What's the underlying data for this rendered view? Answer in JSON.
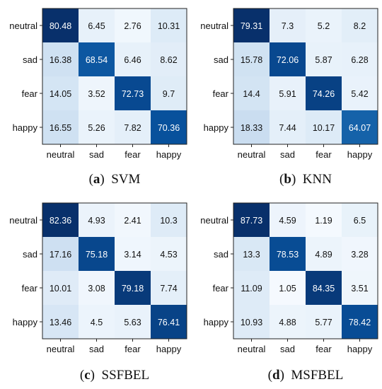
{
  "chart_data": [
    {
      "type": "heatmap",
      "caption_label": "a",
      "caption_text": "SVM",
      "rows": [
        "neutral",
        "sad",
        "fear",
        "happy"
      ],
      "cols": [
        "neutral",
        "sad",
        "fear",
        "happy"
      ],
      "values": [
        [
          80.48,
          6.45,
          2.76,
          10.31
        ],
        [
          16.38,
          68.54,
          6.46,
          8.62
        ],
        [
          14.05,
          3.52,
          72.73,
          9.7
        ],
        [
          16.55,
          5.26,
          7.82,
          70.36
        ]
      ],
      "colormap": "Blues"
    },
    {
      "type": "heatmap",
      "caption_label": "b",
      "caption_text": "KNN",
      "rows": [
        "neutral",
        "sad",
        "fear",
        "happy"
      ],
      "cols": [
        "neutral",
        "sad",
        "fear",
        "happy"
      ],
      "values": [
        [
          79.31,
          7.3,
          5.2,
          8.2
        ],
        [
          15.78,
          72.06,
          5.87,
          6.28
        ],
        [
          14.4,
          5.91,
          74.26,
          5.42
        ],
        [
          18.33,
          7.44,
          10.17,
          64.07
        ]
      ],
      "colormap": "Blues"
    },
    {
      "type": "heatmap",
      "caption_label": "c",
      "caption_text": "SSFBEL",
      "rows": [
        "neutral",
        "sad",
        "fear",
        "happy"
      ],
      "cols": [
        "neutral",
        "sad",
        "fear",
        "happy"
      ],
      "values": [
        [
          82.36,
          4.93,
          2.41,
          10.3
        ],
        [
          17.16,
          75.18,
          3.14,
          4.53
        ],
        [
          10.01,
          3.08,
          79.18,
          7.74
        ],
        [
          13.46,
          4.5,
          5.63,
          76.41
        ]
      ],
      "colormap": "Blues"
    },
    {
      "type": "heatmap",
      "caption_label": "d",
      "caption_text": "MSFBEL",
      "rows": [
        "neutral",
        "sad",
        "fear",
        "happy"
      ],
      "cols": [
        "neutral",
        "sad",
        "fear",
        "happy"
      ],
      "values": [
        [
          87.73,
          4.59,
          1.19,
          6.5
        ],
        [
          13.3,
          78.53,
          4.89,
          3.28
        ],
        [
          11.09,
          1.05,
          84.35,
          3.51
        ],
        [
          10.93,
          4.88,
          5.77,
          78.42
        ]
      ],
      "colormap": "Blues"
    }
  ]
}
